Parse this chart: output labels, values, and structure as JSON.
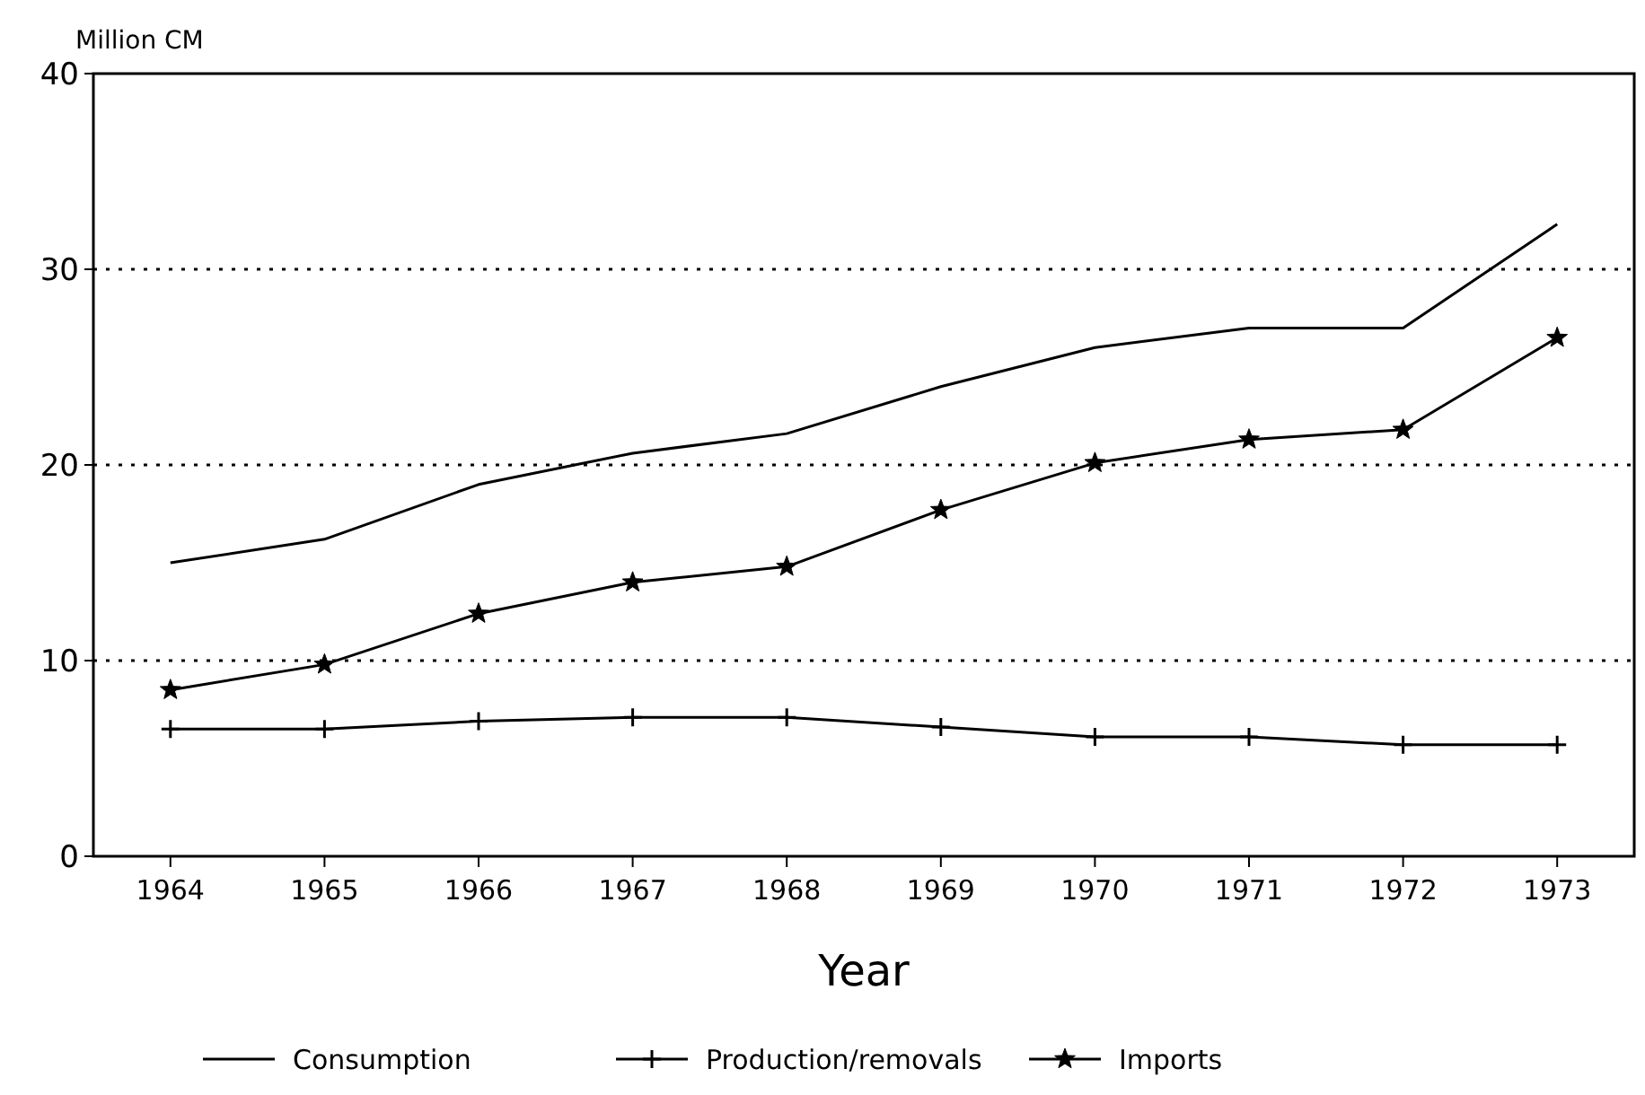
{
  "chart_data": {
    "type": "line",
    "xlabel": "Year",
    "ylabel": "Million CM",
    "categories": [
      "1964",
      "1965",
      "1966",
      "1967",
      "1968",
      "1969",
      "1970",
      "1971",
      "1972",
      "1973"
    ],
    "series": [
      {
        "name": "Consumption",
        "color": "#000000",
        "marker": "none",
        "values": [
          15,
          16.2,
          19,
          20.6,
          21.6,
          24,
          26,
          27,
          27,
          32.3
        ]
      },
      {
        "name": "Production/removals",
        "color": "#000000",
        "marker": "cross",
        "values": [
          6.5,
          6.5,
          6.9,
          7.1,
          7.1,
          6.6,
          6.1,
          6.1,
          5.7,
          5.7
        ]
      },
      {
        "name": "Imports",
        "color": "#000000",
        "marker": "star",
        "values": [
          8.5,
          9.8,
          12.4,
          14,
          14.8,
          17.7,
          20.1,
          21.3,
          21.8,
          26.5
        ]
      }
    ],
    "ylim": [
      0,
      40
    ],
    "yticks": [
      0,
      10,
      20,
      30,
      40
    ],
    "grid": "y",
    "legend": "bottom",
    "line_style": "solid"
  }
}
